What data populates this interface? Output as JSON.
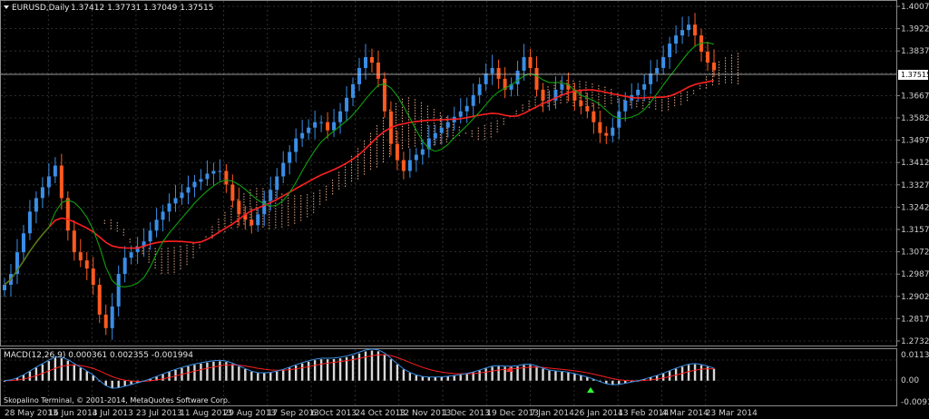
{
  "header": {
    "symbol_timeframe": "EURUSD,Daily",
    "ohlc": "1.37412 1.37731 1.37049 1.37515"
  },
  "indicator_header": "MACD(12,26,9) 0.000361 0.002355 -0.001994",
  "copyright": "Skopalino Terminal, © 2001-2014, MetaQuotes Software Corp.",
  "price_axis": {
    "ticks": [
      "1.40075",
      "1.39225",
      "1.38375",
      "1.37515",
      "1.36675",
      "1.35825",
      "1.34975",
      "1.34125",
      "1.33275",
      "1.32425",
      "1.31575",
      "1.30725",
      "1.29875",
      "1.29025",
      "1.28175",
      "1.27325"
    ],
    "current_price": "1.37515"
  },
  "macd_axis": {
    "ticks": [
      "0.01135",
      "0.00",
      "-0.00917"
    ]
  },
  "time_axis": {
    "labels": [
      "28 May 2013",
      "16 Jun 2013",
      "4 Jul 2013",
      "23 Jul 2013",
      "11 Aug 2013",
      "29 Aug 2013",
      "17 Sep 2013",
      "6 Oct 2013",
      "24 Oct 2013",
      "12 Nov 2013",
      "1 Dec 2013",
      "19 Dec 2013",
      "7 Jan 2014",
      "26 Jan 2014",
      "13 Feb 2014",
      "4 Mar 2014",
      "23 Mar 2014"
    ]
  },
  "colors": {
    "background": "#000000",
    "grid": "#3a3a3a",
    "bull_candle": "#3a8ee6",
    "bear_candle": "#ff5a1f",
    "ma_fast": "#10a010",
    "ma_slow": "#ff2020",
    "kumo": "#f0b090",
    "macd_hist": "#d8d8d8",
    "macd_signal": "#ff2020",
    "macd_line": "#3a8ee6",
    "axis_text": "#d0d0d0"
  },
  "chart_data": {
    "type": "candlestick",
    "symbol": "EURUSD",
    "timeframe": "Daily",
    "x_range": [
      "28 May 2013",
      "23 Mar 2014"
    ],
    "y_range": [
      1.27325,
      1.40075
    ],
    "closes": [
      1.296,
      1.3,
      1.308,
      1.315,
      1.323,
      1.328,
      1.332,
      1.336,
      1.34,
      1.328,
      1.316,
      1.308,
      1.305,
      1.302,
      1.296,
      1.285,
      1.28,
      1.288,
      1.3,
      1.306,
      1.308,
      1.31,
      1.312,
      1.316,
      1.32,
      1.323,
      1.326,
      1.328,
      1.33,
      1.332,
      1.334,
      1.335,
      1.337,
      1.338,
      1.338,
      1.333,
      1.327,
      1.322,
      1.32,
      1.318,
      1.322,
      1.327,
      1.331,
      1.336,
      1.341,
      1.345,
      1.35,
      1.352,
      1.354,
      1.356,
      1.356,
      1.353,
      1.356,
      1.36,
      1.365,
      1.37,
      1.376,
      1.38,
      1.378,
      1.372,
      1.36,
      1.348,
      1.342,
      1.338,
      1.342,
      1.344,
      1.346,
      1.35,
      1.352,
      1.354,
      1.356,
      1.358,
      1.36,
      1.362,
      1.366,
      1.37,
      1.374,
      1.376,
      1.372,
      1.368,
      1.37,
      1.375,
      1.38,
      1.376,
      1.368,
      1.364,
      1.364,
      1.368,
      1.37,
      1.368,
      1.364,
      1.362,
      1.36,
      1.356,
      1.352,
      1.351,
      1.354,
      1.36,
      1.364,
      1.366,
      1.368,
      1.37,
      1.374,
      1.376,
      1.38,
      1.385,
      1.388,
      1.39,
      1.392,
      1.388,
      1.382,
      1.378,
      1.3752
    ],
    "overlays": [
      "fast moving average",
      "slow moving average",
      "Ichimoku cloud"
    ],
    "macd": {
      "fast": 12,
      "slow": 26,
      "signal": 9,
      "values": [
        0.000361,
        0.002355,
        -0.001994
      ],
      "y_range": [
        -0.00917,
        0.01135
      ]
    }
  }
}
